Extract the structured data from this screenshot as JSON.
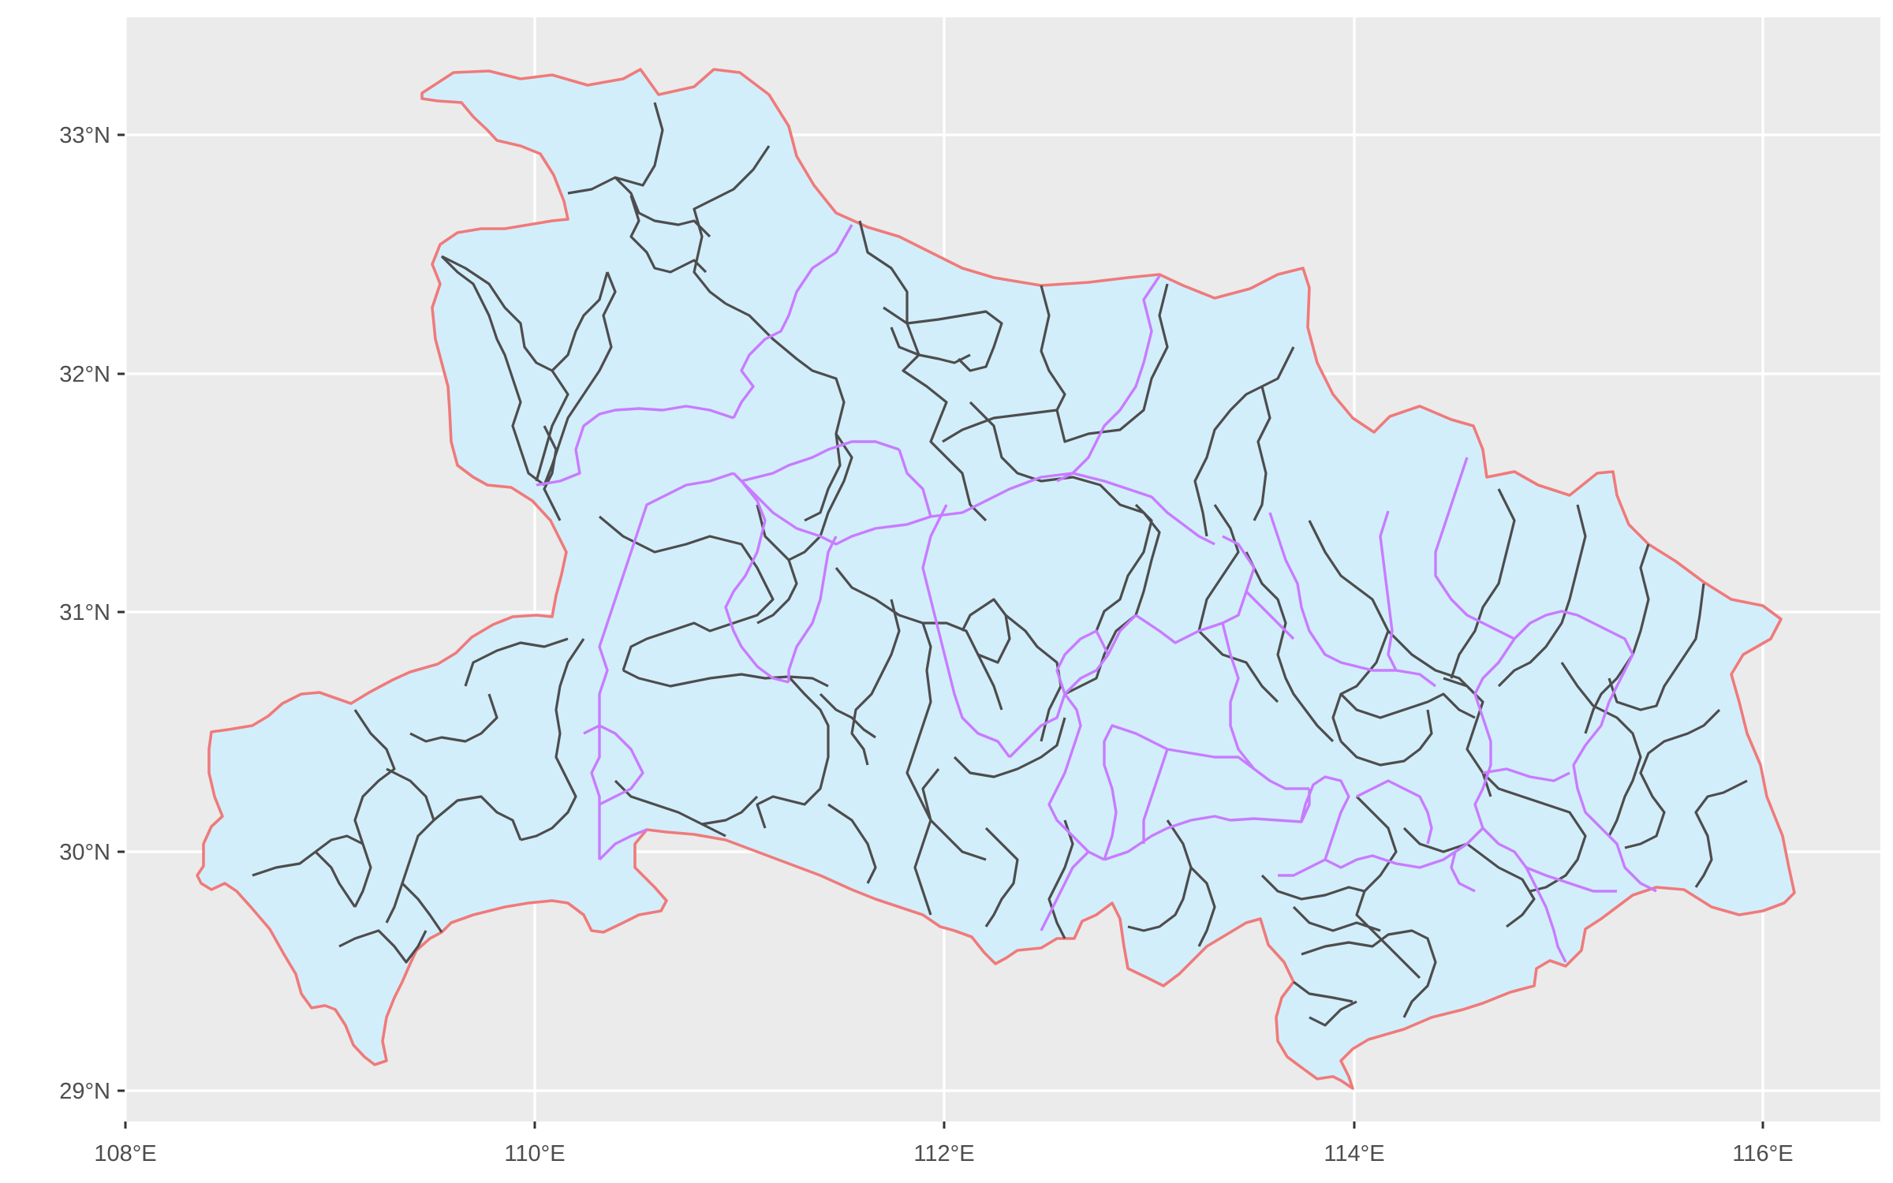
{
  "map": {
    "title": "",
    "colors": {
      "panel_background": "#ebebeb",
      "grid": "#ffffff",
      "province_fill": "#d3eefb",
      "province_outline": "#f07a7a",
      "prefecture_boundary": "#c77cff",
      "county_boundary": "#4d4d4d"
    },
    "x_axis": {
      "range": [
        107.97,
        116.53
      ],
      "ticks": [
        {
          "value": 108,
          "label": "108°E"
        },
        {
          "value": 110,
          "label": "110°E"
        },
        {
          "value": 112,
          "label": "112°E"
        },
        {
          "value": 114,
          "label": "114°E"
        },
        {
          "value": 116,
          "label": "116°E"
        }
      ]
    },
    "y_axis": {
      "range": [
        29.06,
        33.5
      ],
      "ticks": [
        {
          "value": 29,
          "label": "29°N"
        },
        {
          "value": 30,
          "label": "30°N"
        },
        {
          "value": 31,
          "label": "31°N"
        },
        {
          "value": 32,
          "label": "32°N"
        },
        {
          "value": 33,
          "label": "33°N"
        }
      ]
    },
    "grid": true,
    "legend": "none"
  }
}
